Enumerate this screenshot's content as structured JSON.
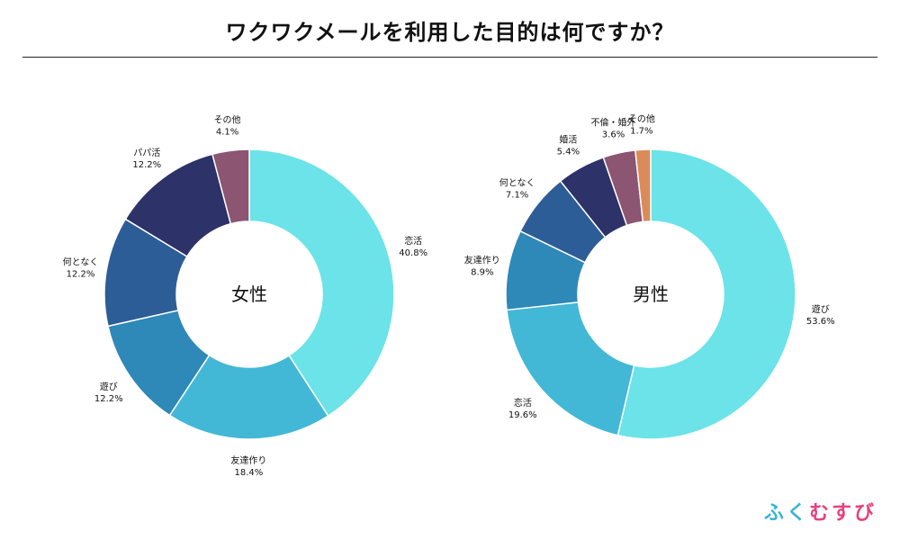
{
  "title": "ワクワクメールを利用した目的は何ですか？",
  "brand": {
    "parts": [
      {
        "text": "ふ",
        "color": "#3bb3d9"
      },
      {
        "text": "く",
        "color": "#3bb3d9"
      },
      {
        "text": "む",
        "color": "#e8407e"
      },
      {
        "text": "す",
        "color": "#e8407e"
      },
      {
        "text": "び",
        "color": "#e8407e"
      }
    ]
  },
  "chart_data": [
    {
      "type": "pie",
      "center_label": "女性",
      "slices": [
        {
          "label": "恋活",
          "value": 40.8,
          "value_text": "40.8%",
          "color": "#6be3e8"
        },
        {
          "label": "友達作り",
          "value": 18.4,
          "value_text": "18.4%",
          "color": "#42b8d6"
        },
        {
          "label": "遊び",
          "value": 12.2,
          "value_text": "12.2%",
          "color": "#2e88b8"
        },
        {
          "label": "何となく",
          "value": 12.2,
          "value_text": "12.2%",
          "color": "#2d5d96"
        },
        {
          "label": "パパ活",
          "value": 12.2,
          "value_text": "12.2%",
          "color": "#2d3269"
        },
        {
          "label": "その他",
          "value": 4.1,
          "value_text": "4.1%",
          "color": "#8c5572"
        }
      ]
    },
    {
      "type": "pie",
      "center_label": "男性",
      "slices": [
        {
          "label": "遊び",
          "value": 53.6,
          "value_text": "53.6%",
          "color": "#6be3e8"
        },
        {
          "label": "恋活",
          "value": 19.6,
          "value_text": "19.6%",
          "color": "#42b8d6"
        },
        {
          "label": "友達作り",
          "value": 8.9,
          "value_text": "8.9%",
          "color": "#2e88b8"
        },
        {
          "label": "何となく",
          "value": 7.1,
          "value_text": "7.1%",
          "color": "#2d5d96"
        },
        {
          "label": "婚活",
          "value": 5.4,
          "value_text": "5.4%",
          "color": "#2d3269"
        },
        {
          "label": "不倫・婚外",
          "value": 3.6,
          "value_text": "3.6%",
          "color": "#8c5572"
        },
        {
          "label": "その他",
          "value": 1.7,
          "value_text": "1.7%",
          "color": "#d98c5a"
        }
      ]
    }
  ]
}
